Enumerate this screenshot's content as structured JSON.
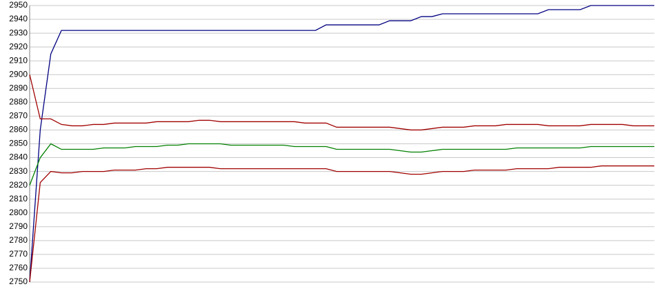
{
  "chart_data": {
    "type": "line",
    "categories": [
      null,
      null,
      null,
      null,
      null,
      null,
      null,
      null,
      null,
      null,
      null,
      null,
      null,
      null,
      null,
      null,
      null,
      null,
      null,
      null,
      null,
      null,
      null,
      null,
      null,
      null,
      null,
      null,
      null,
      null,
      null,
      null,
      null,
      null,
      null,
      null,
      null,
      null,
      null,
      null,
      null,
      null,
      null,
      null,
      null,
      null,
      null,
      null,
      null,
      null,
      null,
      null,
      null,
      null,
      null,
      null,
      null,
      null,
      null,
      null
    ],
    "series": [
      {
        "color": "#000080",
        "values": [
          2750,
          2860,
          2915,
          2932,
          2932,
          2932,
          2932,
          2932,
          2932,
          2932,
          2932,
          2932,
          2932,
          2932,
          2932,
          2932,
          2932,
          2932,
          2932,
          2932,
          2932,
          2932,
          2932,
          2932,
          2932,
          2932,
          2932,
          2932,
          2936,
          2936,
          2936,
          2936,
          2936,
          2936,
          2939,
          2939,
          2939,
          2942,
          2942,
          2944,
          2944,
          2944,
          2944,
          2944,
          2944,
          2944,
          2944,
          2944,
          2944,
          2947,
          2947,
          2947,
          2947,
          2950,
          2950,
          2950,
          2950,
          2950,
          2950,
          2950
        ]
      },
      {
        "color": "#a00000",
        "values": [
          2900,
          2868,
          2868,
          2864,
          2863,
          2863,
          2864,
          2864,
          2865,
          2865,
          2865,
          2865,
          2866,
          2866,
          2866,
          2866,
          2867,
          2867,
          2866,
          2866,
          2866,
          2866,
          2866,
          2866,
          2866,
          2866,
          2865,
          2865,
          2865,
          2862,
          2862,
          2862,
          2862,
          2862,
          2862,
          2861,
          2860,
          2860,
          2861,
          2862,
          2862,
          2862,
          2863,
          2863,
          2863,
          2864,
          2864,
          2864,
          2864,
          2863,
          2863,
          2863,
          2863,
          2864,
          2864,
          2864,
          2864,
          2863,
          2863,
          2863
        ]
      },
      {
        "color": "#008000",
        "values": [
          2820,
          2840,
          2850,
          2846,
          2846,
          2846,
          2846,
          2847,
          2847,
          2847,
          2848,
          2848,
          2848,
          2849,
          2849,
          2850,
          2850,
          2850,
          2850,
          2849,
          2849,
          2849,
          2849,
          2849,
          2849,
          2848,
          2848,
          2848,
          2848,
          2846,
          2846,
          2846,
          2846,
          2846,
          2846,
          2845,
          2844,
          2844,
          2845,
          2846,
          2846,
          2846,
          2846,
          2846,
          2846,
          2846,
          2847,
          2847,
          2847,
          2847,
          2847,
          2847,
          2847,
          2848,
          2848,
          2848,
          2848,
          2848,
          2848,
          2848
        ]
      },
      {
        "color": "#a00000",
        "values": [
          2750,
          2822,
          2830,
          2829,
          2829,
          2830,
          2830,
          2830,
          2831,
          2831,
          2831,
          2832,
          2832,
          2833,
          2833,
          2833,
          2833,
          2833,
          2832,
          2832,
          2832,
          2832,
          2832,
          2832,
          2832,
          2832,
          2832,
          2832,
          2832,
          2830,
          2830,
          2830,
          2830,
          2830,
          2830,
          2829,
          2828,
          2828,
          2829,
          2830,
          2830,
          2830,
          2831,
          2831,
          2831,
          2831,
          2832,
          2832,
          2832,
          2832,
          2833,
          2833,
          2833,
          2833,
          2834,
          2834,
          2834,
          2834,
          2834,
          2834
        ]
      }
    ],
    "ylim": [
      2750,
      2950
    ],
    "yticks": [
      2750,
      2760,
      2770,
      2780,
      2790,
      2800,
      2810,
      2820,
      2830,
      2840,
      2850,
      2860,
      2870,
      2880,
      2890,
      2900,
      2910,
      2920,
      2930,
      2940,
      2950
    ],
    "grid": true
  }
}
